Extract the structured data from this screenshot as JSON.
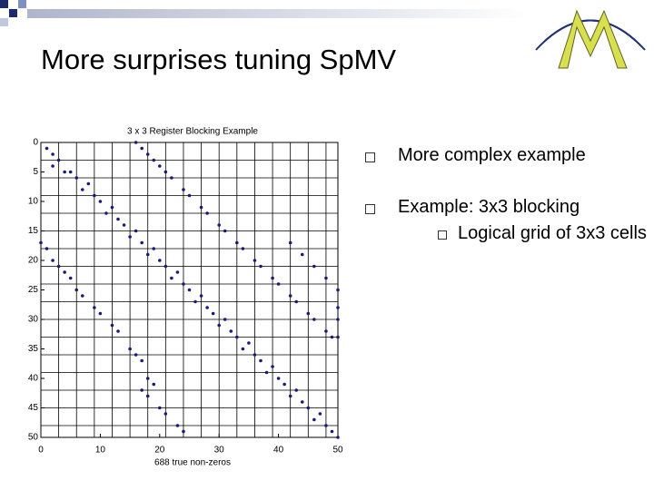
{
  "slide": {
    "title": "More surprises tuning SpMV",
    "bullets": [
      {
        "text": "More complex example",
        "sub": []
      },
      {
        "text": "Example: 3x3 blocking",
        "sub": [
          "Logical grid of 3x3 cells"
        ]
      }
    ]
  },
  "chart_data": {
    "type": "scatter",
    "title": "3 x 3 Register Blocking Example",
    "x_label": "688 true non-zeros",
    "x": [
      1,
      2,
      2,
      3,
      4,
      5,
      6,
      7,
      8,
      9,
      10,
      11,
      12,
      13,
      14,
      15,
      16,
      17,
      18,
      19,
      20,
      21,
      22,
      23,
      24,
      25,
      26,
      27,
      28,
      29,
      30,
      31,
      32,
      33,
      34,
      35,
      36,
      37,
      38,
      39,
      40,
      41,
      42,
      43,
      44,
      45,
      46,
      47,
      48,
      49,
      50,
      16,
      17,
      18,
      19,
      20,
      21,
      22,
      24,
      25,
      27,
      28,
      30,
      31,
      33,
      34,
      36,
      37,
      39,
      40,
      42,
      43,
      45,
      46,
      48,
      49,
      0,
      1,
      2,
      3,
      4,
      5,
      6,
      7,
      9,
      10,
      12,
      13,
      15,
      16,
      17,
      18,
      19,
      17,
      18,
      20,
      21,
      23,
      24,
      42,
      44,
      46,
      48,
      50,
      50,
      50,
      50
    ],
    "y": [
      1,
      2,
      4,
      3,
      5,
      5,
      6,
      8,
      7,
      9,
      10,
      12,
      11,
      13,
      14,
      16,
      15,
      17,
      19,
      18,
      20,
      21,
      23,
      22,
      24,
      25,
      27,
      26,
      28,
      29,
      31,
      30,
      32,
      33,
      35,
      34,
      36,
      37,
      39,
      38,
      40,
      41,
      43,
      42,
      44,
      45,
      47,
      46,
      48,
      49,
      50,
      0,
      1,
      2,
      3,
      4,
      5,
      6,
      8,
      9,
      11,
      12,
      14,
      15,
      17,
      18,
      20,
      21,
      23,
      24,
      26,
      27,
      29,
      30,
      32,
      33,
      17,
      18,
      20,
      21,
      22,
      23,
      25,
      26,
      28,
      29,
      31,
      32,
      35,
      36,
      37,
      40,
      41,
      42,
      43,
      45,
      46,
      48,
      49,
      17,
      19,
      21,
      23,
      25,
      28,
      30,
      33
    ],
    "color": "#1a1a7a",
    "xlim": [
      0,
      50
    ],
    "ylim": [
      50,
      0
    ],
    "xticks": [
      0,
      10,
      20,
      30,
      40,
      50
    ],
    "yticks": [
      0,
      5,
      10,
      15,
      20,
      25,
      30,
      35,
      40,
      45,
      50
    ],
    "grid": true,
    "block_size": 3
  }
}
